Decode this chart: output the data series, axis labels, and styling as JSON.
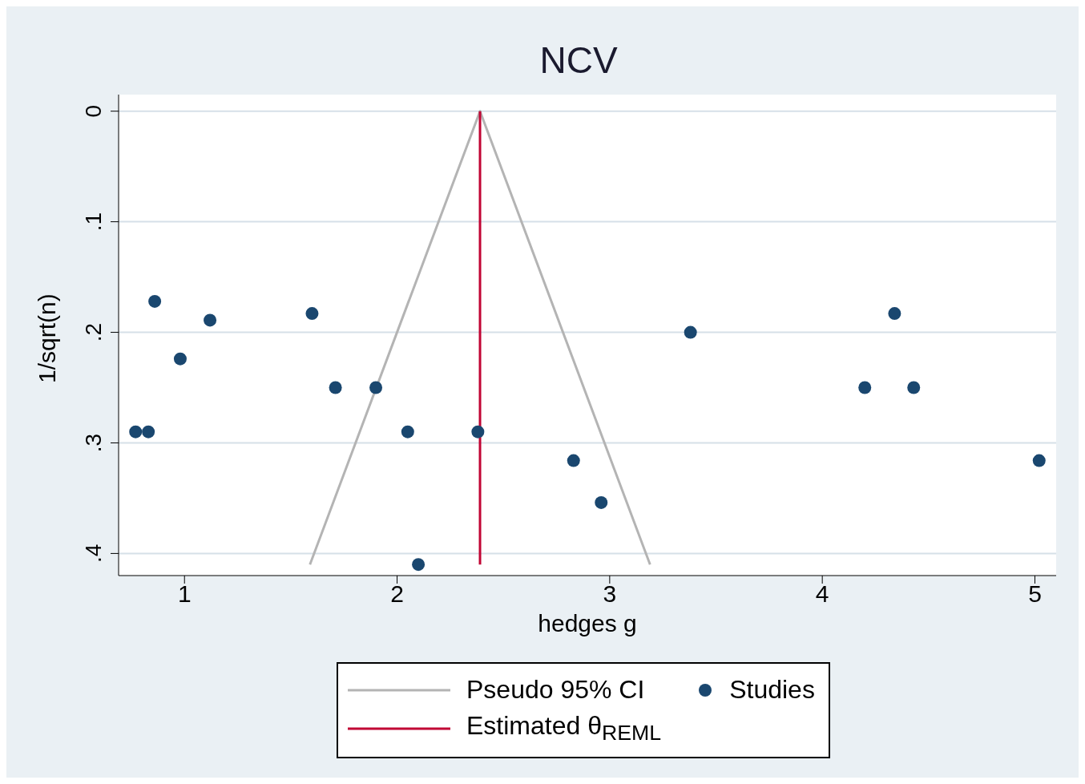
{
  "chart_data": {
    "type": "scatter",
    "title": "NCV",
    "xlabel": "hedges g",
    "ylabel": "1/sqrt(n)",
    "xlim": [
      0.69,
      5.1
    ],
    "ylim": [
      0.42,
      -0.015
    ],
    "xticks": [
      1,
      2,
      3,
      4,
      5
    ],
    "yticks": [
      {
        "value": 0,
        "label": "0"
      },
      {
        "value": 0.1,
        "label": ".1"
      },
      {
        "value": 0.2,
        "label": ".2"
      },
      {
        "value": 0.3,
        "label": ".3"
      },
      {
        "value": 0.4,
        "label": ".4"
      }
    ],
    "grid": "y",
    "legend": "bottom",
    "series": [
      {
        "name": "Pseudo 95% CI",
        "type": "line",
        "color": "#b4b4b4",
        "x": [
          1.59,
          2.39,
          3.19
        ],
        "values": [
          0.41,
          0,
          0.41
        ]
      },
      {
        "name": "Studies",
        "marker": "circle",
        "color": "#1a476f",
        "x": [
          0.77,
          0.83,
          0.86,
          0.98,
          1.12,
          1.6,
          1.71,
          1.9,
          2.05,
          2.1,
          2.38,
          2.83,
          2.96,
          3.38,
          4.2,
          4.34,
          4.43,
          5.02
        ],
        "values": [
          0.29,
          0.29,
          0.172,
          0.224,
          0.189,
          0.183,
          0.25,
          0.25,
          0.29,
          0.41,
          0.29,
          0.316,
          0.354,
          0.2,
          0.25,
          0.183,
          0.25,
          0.316
        ]
      },
      {
        "name": "Estimated θ$_{REML}$",
        "type": "line",
        "color": "#c10534",
        "x": [
          2.39,
          2.39
        ],
        "values": [
          0,
          0.41
        ]
      }
    ]
  }
}
